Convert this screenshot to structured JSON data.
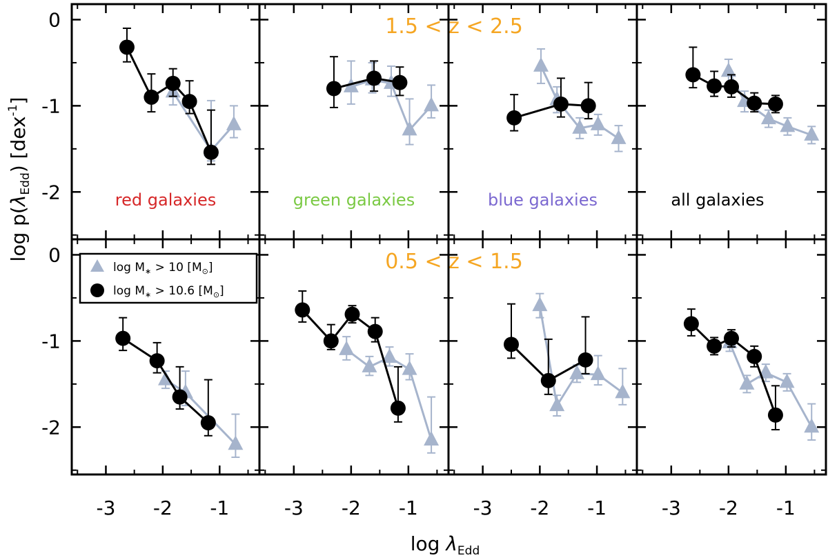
{
  "figure": {
    "ylabel_main": "log p(",
    "ylabel_lambda": "λ",
    "ylabel_sub": "Edd",
    "ylabel_tail": ") [dex",
    "ylabel_sup": "-1",
    "ylabel_close": "]",
    "xlabel_main": "log ",
    "xlabel_lambda": "λ",
    "xlabel_sub": "Edd",
    "legend": {
      "items": [
        {
          "marker": "triangle",
          "color": "#a6b4cc",
          "text_main": "log M",
          "text_sub": "∗",
          "text_rest": " > 10 [M",
          "text_sun": "⊙",
          "text_close": "]"
        },
        {
          "marker": "circle",
          "color": "#000000",
          "text_main": "log M",
          "text_sub": "∗",
          "text_rest": " > 10.6 [M",
          "text_sun": "⊙",
          "text_close": "]"
        }
      ]
    }
  },
  "chart_data": [
    {
      "type": "scatter",
      "row": 0,
      "col": 0,
      "redshift_label": "",
      "galaxy_label": "red galaxies",
      "label_color": "#d62728",
      "x_ticks": [
        "-3",
        "-2",
        "-1"
      ],
      "y_ticks": [
        "0",
        "-1",
        "-2"
      ],
      "xlim": [
        -3.6,
        -0.3
      ],
      "ylim": [
        -2.55,
        0.18
      ],
      "series": [
        {
          "name": "log M* > 10",
          "color": "#a6b4cc",
          "marker": "triangle",
          "x": [
            -1.82,
            -1.15,
            -0.75
          ],
          "y": [
            -0.84,
            -1.52,
            -1.22
          ],
          "err_lo": [
            0.15,
            0.12,
            0.15
          ],
          "err_hi": [
            0.15,
            0.58,
            0.22
          ]
        },
        {
          "name": "log M* > 10.6",
          "color": "#000000",
          "marker": "circle",
          "x": [
            -2.63,
            -2.2,
            -1.82,
            -1.53,
            -1.15
          ],
          "y": [
            -0.32,
            -0.9,
            -0.74,
            -0.95,
            -1.54
          ],
          "err_lo": [
            0.17,
            0.17,
            0.15,
            0.14,
            0.14
          ],
          "err_hi": [
            0.22,
            0.27,
            0.17,
            0.24,
            0.49
          ]
        }
      ]
    },
    {
      "type": "scatter",
      "row": 0,
      "col": 1,
      "redshift_label": "1.5 < z < 2.5",
      "galaxy_label": "green galaxies",
      "label_color": "#7ac943",
      "x_ticks": [
        "-3",
        "-2",
        "-1"
      ],
      "y_ticks": [
        "0",
        "-1",
        "-2"
      ],
      "xlim": [
        -3.6,
        -0.3
      ],
      "ylim": [
        -2.55,
        0.18
      ],
      "series": [
        {
          "name": "log M* > 10",
          "color": "#a6b4cc",
          "marker": "triangle",
          "x": [
            -2.0,
            -1.63,
            -1.3,
            -0.98,
            -0.6
          ],
          "y": [
            -0.78,
            -0.7,
            -0.74,
            -1.28,
            -1.0
          ],
          "err_lo": [
            0.2,
            0.15,
            0.15,
            0.17,
            0.14
          ],
          "err_hi": [
            0.3,
            0.2,
            0.2,
            0.36,
            0.24
          ]
        },
        {
          "name": "log M* > 10.6",
          "color": "#000000",
          "marker": "circle",
          "x": [
            -2.3,
            -1.6,
            -1.15
          ],
          "y": [
            -0.8,
            -0.68,
            -0.73
          ],
          "err_lo": [
            0.22,
            0.15,
            0.15
          ],
          "err_hi": [
            0.37,
            0.2,
            0.18
          ]
        }
      ]
    },
    {
      "type": "scatter",
      "row": 0,
      "col": 2,
      "redshift_label": "",
      "galaxy_label": "blue galaxies",
      "label_color": "#7b68d0",
      "x_ticks": [
        "-3",
        "-2",
        "-1"
      ],
      "y_ticks": [
        "0",
        "-1",
        "-2"
      ],
      "xlim": [
        -3.6,
        -0.3
      ],
      "ylim": [
        -2.55,
        0.18
      ],
      "series": [
        {
          "name": "log M* > 10",
          "color": "#a6b4cc",
          "marker": "triangle",
          "x": [
            -1.98,
            -1.7,
            -1.3,
            -0.98,
            -0.62
          ],
          "y": [
            -0.54,
            -0.93,
            -1.26,
            -1.22,
            -1.38
          ],
          "err_lo": [
            0.2,
            0.15,
            0.12,
            0.12,
            0.15
          ],
          "err_hi": [
            0.2,
            0.15,
            0.12,
            0.12,
            0.15
          ]
        },
        {
          "name": "log M* > 10.6",
          "color": "#000000",
          "marker": "circle",
          "x": [
            -2.45,
            -1.63,
            -1.15
          ],
          "y": [
            -1.14,
            -0.98,
            -1.0
          ],
          "err_lo": [
            0.15,
            0.15,
            0.15
          ],
          "err_hi": [
            0.27,
            0.3,
            0.27
          ]
        }
      ]
    },
    {
      "type": "scatter",
      "row": 0,
      "col": 3,
      "redshift_label": "",
      "galaxy_label": "all galaxies",
      "label_color": "#000000",
      "x_ticks": [
        "-3",
        "-2",
        "-1"
      ],
      "y_ticks": [
        "0",
        "-1",
        "-2"
      ],
      "xlim": [
        -3.6,
        -0.3
      ],
      "ylim": [
        -2.55,
        0.18
      ],
      "series": [
        {
          "name": "log M* > 10",
          "color": "#a6b4cc",
          "marker": "triangle",
          "x": [
            -2.0,
            -1.72,
            -1.3,
            -0.97,
            -0.55
          ],
          "y": [
            -0.6,
            -0.95,
            -1.15,
            -1.24,
            -1.34
          ],
          "err_lo": [
            0.14,
            0.12,
            0.1,
            0.1,
            0.1
          ],
          "err_hi": [
            0.14,
            0.12,
            0.1,
            0.1,
            0.1
          ]
        },
        {
          "name": "log M* > 10.6",
          "color": "#000000",
          "marker": "circle",
          "x": [
            -2.62,
            -2.25,
            -1.95,
            -1.55,
            -1.18
          ],
          "y": [
            -0.64,
            -0.77,
            -0.78,
            -0.97,
            -0.98
          ],
          "err_lo": [
            0.15,
            0.12,
            0.12,
            0.1,
            0.1
          ],
          "err_hi": [
            0.32,
            0.17,
            0.14,
            0.12,
            0.1
          ]
        }
      ]
    },
    {
      "type": "scatter",
      "row": 1,
      "col": 0,
      "redshift_label": "",
      "galaxy_label": "",
      "label_color": "#000000",
      "x_ticks": [
        "-3",
        "-2",
        "-1"
      ],
      "y_ticks": [
        "0",
        "-1",
        "-2"
      ],
      "xlim": [
        -3.6,
        -0.3
      ],
      "ylim": [
        -2.55,
        0.18
      ],
      "series": [
        {
          "name": "log M* > 10",
          "color": "#a6b4cc",
          "marker": "triangle",
          "x": [
            -1.95,
            -1.6,
            -0.72
          ],
          "y": [
            -1.45,
            -1.6,
            -2.2
          ],
          "err_lo": [
            0.1,
            0.15,
            0.15
          ],
          "err_hi": [
            0.1,
            0.25,
            0.35
          ]
        },
        {
          "name": "log M* > 10.6",
          "color": "#000000",
          "marker": "circle",
          "x": [
            -2.7,
            -2.1,
            -1.7,
            -1.2
          ],
          "y": [
            -0.97,
            -1.23,
            -1.65,
            -1.95
          ],
          "err_lo": [
            0.14,
            0.14,
            0.14,
            0.15
          ],
          "err_hi": [
            0.24,
            0.21,
            0.35,
            0.5
          ]
        }
      ]
    },
    {
      "type": "scatter",
      "row": 1,
      "col": 1,
      "redshift_label": "0.5 < z < 1.5",
      "galaxy_label": "",
      "label_color": "#000000",
      "x_ticks": [
        "-3",
        "-2",
        "-1"
      ],
      "y_ticks": [
        "0",
        "-1",
        "-2"
      ],
      "xlim": [
        -3.6,
        -0.3
      ],
      "ylim": [
        -2.55,
        0.18
      ],
      "series": [
        {
          "name": "log M* > 10",
          "color": "#a6b4cc",
          "marker": "triangle",
          "x": [
            -2.08,
            -1.68,
            -1.33,
            -0.98,
            -0.6
          ],
          "y": [
            -1.1,
            -1.3,
            -1.19,
            -1.33,
            -2.15
          ],
          "err_lo": [
            0.12,
            0.1,
            0.1,
            0.12,
            0.15
          ],
          "err_hi": [
            0.15,
            0.12,
            0.12,
            0.18,
            0.5
          ]
        },
        {
          "name": "log M* > 10.6",
          "color": "#000000",
          "marker": "circle",
          "x": [
            -2.85,
            -2.35,
            -1.98,
            -1.58,
            -1.18
          ],
          "y": [
            -0.64,
            -1.0,
            -0.69,
            -0.89,
            -1.78
          ],
          "err_lo": [
            0.14,
            0.1,
            0.1,
            0.12,
            0.16
          ],
          "err_hi": [
            0.22,
            0.19,
            0.1,
            0.16,
            0.48
          ]
        }
      ]
    },
    {
      "type": "scatter",
      "row": 1,
      "col": 2,
      "redshift_label": "",
      "galaxy_label": "",
      "label_color": "#000000",
      "x_ticks": [
        "-3",
        "-2",
        "-1"
      ],
      "y_ticks": [
        "0",
        "-1",
        "-2"
      ],
      "xlim": [
        -3.6,
        -0.3
      ],
      "ylim": [
        -2.55,
        0.18
      ],
      "series": [
        {
          "name": "log M* > 10",
          "color": "#a6b4cc",
          "marker": "triangle",
          "x": [
            -2.0,
            -1.7,
            -1.35,
            -0.98,
            -0.55
          ],
          "y": [
            -0.59,
            -1.75,
            -1.38,
            -1.39,
            -1.6
          ],
          "err_lo": [
            0.14,
            0.12,
            0.1,
            0.12,
            0.14
          ],
          "err_hi": [
            0.14,
            0.12,
            0.1,
            0.22,
            0.28
          ]
        },
        {
          "name": "log M* > 10.6",
          "color": "#000000",
          "marker": "circle",
          "x": [
            -2.5,
            -1.85,
            -1.2
          ],
          "y": [
            -1.04,
            -1.46,
            -1.22
          ],
          "err_lo": [
            0.16,
            0.16,
            0.16
          ],
          "err_hi": [
            0.47,
            0.48,
            0.5
          ]
        }
      ]
    },
    {
      "type": "scatter",
      "row": 1,
      "col": 3,
      "redshift_label": "",
      "galaxy_label": "",
      "label_color": "#000000",
      "x_ticks": [
        "-3",
        "-2",
        "-1"
      ],
      "y_ticks": [
        "0",
        "-1",
        "-2"
      ],
      "xlim": [
        -3.6,
        -0.3
      ],
      "ylim": [
        -2.55,
        0.18
      ],
      "series": [
        {
          "name": "log M* > 10",
          "color": "#a6b4cc",
          "marker": "triangle",
          "x": [
            -1.98,
            -1.68,
            -1.35,
            -0.98,
            -0.55
          ],
          "y": [
            -1.02,
            -1.5,
            -1.37,
            -1.48,
            -2.0
          ],
          "err_lo": [
            0.1,
            0.1,
            0.1,
            0.1,
            0.15
          ],
          "err_hi": [
            0.1,
            0.1,
            0.1,
            0.1,
            0.27
          ]
        },
        {
          "name": "log M* > 10.6",
          "color": "#000000",
          "marker": "circle",
          "x": [
            -2.65,
            -2.25,
            -1.95,
            -1.55,
            -1.18
          ],
          "y": [
            -0.8,
            -1.06,
            -0.97,
            -1.18,
            -1.86
          ],
          "err_lo": [
            0.14,
            0.1,
            0.1,
            0.12,
            0.17
          ],
          "err_hi": [
            0.17,
            0.1,
            0.1,
            0.12,
            0.34
          ]
        }
      ]
    }
  ]
}
